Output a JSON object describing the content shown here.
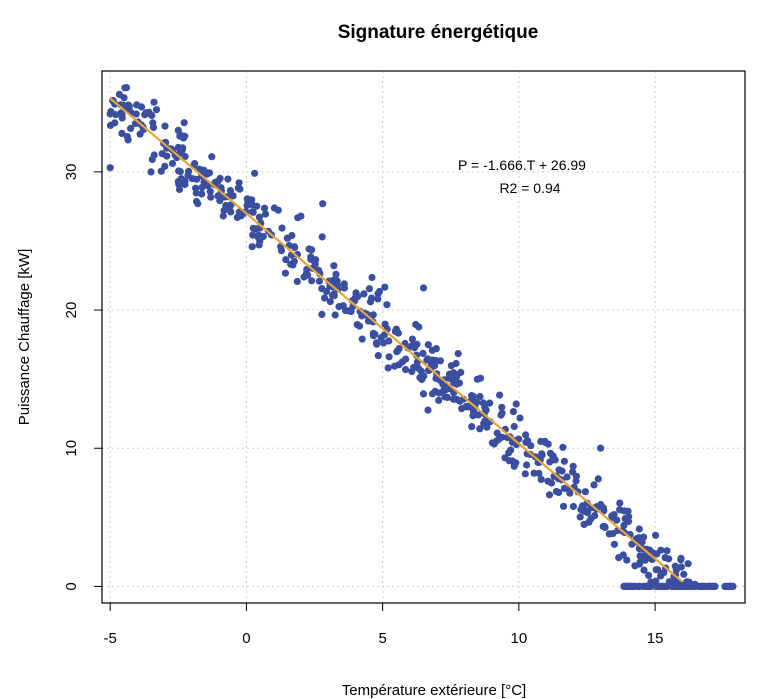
{
  "chart_data": {
    "type": "scatter",
    "title": "Signature énergétique",
    "xlabel": "Température extérieure [°C]",
    "ylabel": "Puissance Chauffage [kW]",
    "xlim": [
      -5.3,
      18.3
    ],
    "ylim": [
      -1.2,
      37.3
    ],
    "xticks": [
      -5,
      0,
      5,
      10,
      15
    ],
    "yticks": [
      0,
      10,
      20,
      30
    ],
    "grid": true,
    "colors": {
      "points": "#3b4fa0",
      "fit_line": "#e8a33a",
      "grid": "#d0d0d0"
    },
    "annotation_lines": [
      "P = -1.666.T + 26.99",
      "R2 = 0.94"
    ],
    "fit": {
      "slope": -1.666,
      "intercept": 26.99,
      "x_range": [
        -5,
        16
      ]
    },
    "point_generation": {
      "note": "approximate distribution read from the scatter",
      "band_count": 560,
      "band_x_range": [
        -5,
        16.5
      ],
      "band_spread": 2.2,
      "zero_count": 70,
      "zero_x_range": [
        13.8,
        18
      ],
      "sample_points": [
        {
          "x": -4.4,
          "y": 36.1
        },
        {
          "x": -5.0,
          "y": 30.3
        },
        {
          "x": -3.5,
          "y": 30.0
        },
        {
          "x": -3.3,
          "y": 34.5
        },
        {
          "x": -2.5,
          "y": 33.0
        },
        {
          "x": -1.9,
          "y": 30.6
        },
        {
          "x": 0.3,
          "y": 29.9
        },
        {
          "x": 2.8,
          "y": 27.7
        },
        {
          "x": 2.0,
          "y": 26.8
        },
        {
          "x": 6.5,
          "y": 21.6
        },
        {
          "x": 13.0,
          "y": 10.0
        },
        {
          "x": 15.5,
          "y": 2.0
        }
      ]
    }
  }
}
